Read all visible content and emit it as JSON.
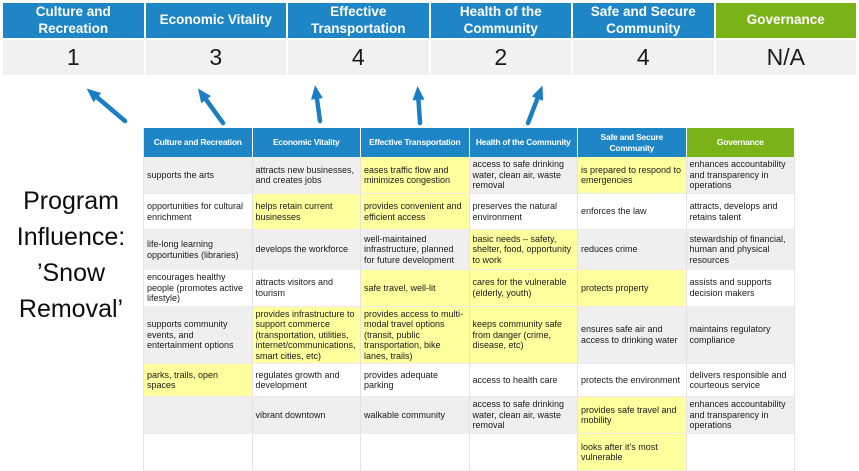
{
  "program_label": "Program\nInfluence:\n’Snow\nRemoval’",
  "colors": {
    "blue": "#1e86c6",
    "green": "#79b318",
    "highlight": "#ffff9d",
    "rowalt": "#efefef",
    "scorebg": "#f1f1f1",
    "arrow": "#1b7ec4"
  },
  "banner": {
    "columns": [
      {
        "label": "Culture and Recreation",
        "score": "1",
        "theme": "blue"
      },
      {
        "label": "Economic Vitality",
        "score": "3",
        "theme": "blue"
      },
      {
        "label": "Effective Transportation",
        "score": "4",
        "theme": "blue"
      },
      {
        "label": "Health of the Community",
        "score": "2",
        "theme": "blue"
      },
      {
        "label": "Safe and Secure Community",
        "score": "4",
        "theme": "blue"
      },
      {
        "label": "Governance",
        "score": "N/A",
        "theme": "green"
      }
    ]
  },
  "matrix": {
    "headers": [
      {
        "label": "Culture and Recreation",
        "theme": "blue"
      },
      {
        "label": "Economic Vitality",
        "theme": "blue"
      },
      {
        "label": "Effective Transportation",
        "theme": "blue"
      },
      {
        "label": "Health of the Community",
        "theme": "blue"
      },
      {
        "label": "Safe and Secure Community",
        "theme": "blue"
      },
      {
        "label": "Governance",
        "theme": "green"
      }
    ],
    "rows": [
      [
        {
          "text": "supports the arts",
          "highlight": false
        },
        {
          "text": "attracts new businesses, and creates jobs",
          "highlight": false
        },
        {
          "text": "eases traffic flow and minimizes congestion",
          "highlight": true
        },
        {
          "text": "access to safe drinking water, clean air, waste removal",
          "highlight": false
        },
        {
          "text": "is prepared to respond to emergencies",
          "highlight": true
        },
        {
          "text": "enhances accountability and transparency in operations",
          "highlight": false
        }
      ],
      [
        {
          "text": "opportunities for cultural enrichment",
          "highlight": false
        },
        {
          "text": "helps retain current businesses",
          "highlight": true
        },
        {
          "text": "provides convenient and efficient access",
          "highlight": true
        },
        {
          "text": "preserves the natural environment",
          "highlight": false
        },
        {
          "text": "enforces the law",
          "highlight": false
        },
        {
          "text": "attracts, develops and retains talent",
          "highlight": false
        }
      ],
      [
        {
          "text": "life-long learning opportunities (libraries)",
          "highlight": false
        },
        {
          "text": "develops the workforce",
          "highlight": false
        },
        {
          "text": "well-maintained infrastructure, planned for future development",
          "highlight": false
        },
        {
          "text": "basic needs – safety, shelter, food, opportunity to work",
          "highlight": true
        },
        {
          "text": "reduces crime",
          "highlight": false
        },
        {
          "text": "stewardship of financial, human and physical resources",
          "highlight": false
        }
      ],
      [
        {
          "text": "encourages healthy people (promotes active lifestyle)",
          "highlight": false
        },
        {
          "text": "attracts visitors and tourism",
          "highlight": false
        },
        {
          "text": "safe travel, well-lit",
          "highlight": true
        },
        {
          "text": "cares for the vulnerable (elderly, youth)",
          "highlight": true
        },
        {
          "text": "protects property",
          "highlight": true
        },
        {
          "text": "assists and supports decision makers",
          "highlight": false
        }
      ],
      [
        {
          "text": "supports community events, and entertainment options",
          "highlight": false
        },
        {
          "text": "provides infrastructure to support commerce (transportation, utilities, internet/communications, smart cities, etc)",
          "highlight": true
        },
        {
          "text": "provides access to multi-modal travel options (transit, public transportation, bike lanes, trails)",
          "highlight": true
        },
        {
          "text": "keeps community safe from danger (crime, disease, etc)",
          "highlight": true
        },
        {
          "text": "ensures safe air and access to drinking water",
          "highlight": false
        },
        {
          "text": "maintains regulatory compliance",
          "highlight": false
        }
      ],
      [
        {
          "text": "parks, trails, open spaces",
          "highlight": true
        },
        {
          "text": "regulates growth and development",
          "highlight": false
        },
        {
          "text": "provides adequate parking",
          "highlight": false
        },
        {
          "text": "access to health care",
          "highlight": false
        },
        {
          "text": "protects the environment",
          "highlight": false
        },
        {
          "text": "delivers responsible and courteous service",
          "highlight": false
        }
      ],
      [
        {
          "text": "",
          "highlight": false
        },
        {
          "text": "vibrant downtown",
          "highlight": false
        },
        {
          "text": "walkable community",
          "highlight": false
        },
        {
          "text": "access to safe drinking water, clean air, waste removal",
          "highlight": false
        },
        {
          "text": "provides safe travel and mobility",
          "highlight": true
        },
        {
          "text": "enhances accountability and transparency in operations",
          "highlight": false
        }
      ],
      [
        {
          "text": "",
          "highlight": false
        },
        {
          "text": "",
          "highlight": false
        },
        {
          "text": "",
          "highlight": false
        },
        {
          "text": "",
          "highlight": false
        },
        {
          "text": "looks after it's most vulnerable",
          "highlight": true
        },
        {
          "text": "",
          "highlight": false
        }
      ]
    ]
  }
}
